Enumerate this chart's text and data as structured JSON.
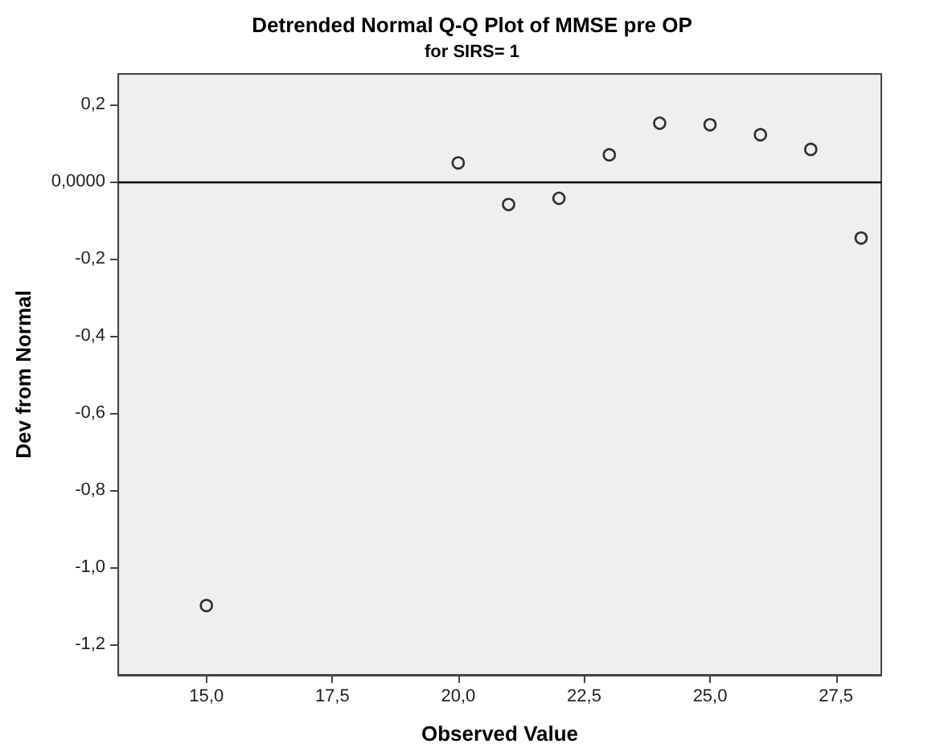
{
  "chart_data": {
    "type": "scatter",
    "title": "Detrended Normal Q-Q Plot of MMSE pre OP",
    "subtitle": "for SIRS= 1",
    "xlabel": "Observed Value",
    "ylabel": "Dev from Normal",
    "x": [
      15,
      20,
      21,
      22,
      23,
      24,
      25,
      26,
      27,
      28
    ],
    "series": [
      {
        "color": "#000000",
        "values": [
          -1.1,
          0.049,
          -0.059,
          -0.043,
          0.07,
          0.152,
          0.148,
          0.122,
          0.084,
          -0.146
        ]
      }
    ],
    "xlim": [
      13.25,
      28.4
    ],
    "xticks": [
      {
        "value": 15,
        "label": "15,0"
      },
      {
        "value": 17.5,
        "label": "17,5"
      },
      {
        "value": 20,
        "label": "20,0"
      },
      {
        "value": 22.5,
        "label": "22,5"
      },
      {
        "value": 25,
        "label": "25,0"
      },
      {
        "value": 27.5,
        "label": "27,5"
      }
    ],
    "ylim": [
      -1.28,
      0.28
    ],
    "yticks": [
      {
        "value": -1.2,
        "label": "-1,2"
      },
      {
        "value": -1,
        "label": "-1,0"
      },
      {
        "value": -0.8,
        "label": "-0,8"
      },
      {
        "value": -0.6,
        "label": "-0,6"
      },
      {
        "value": -0.4,
        "label": "-0,4"
      },
      {
        "value": -0.2,
        "label": "-0,2"
      },
      {
        "value": 0,
        "label": "0,0000"
      },
      {
        "value": 0.2,
        "label": "0,2"
      }
    ],
    "ref_lines": [
      {
        "axis": "y",
        "value": 0,
        "color": "#000000"
      }
    ],
    "marker": "circle",
    "grid": false
  }
}
